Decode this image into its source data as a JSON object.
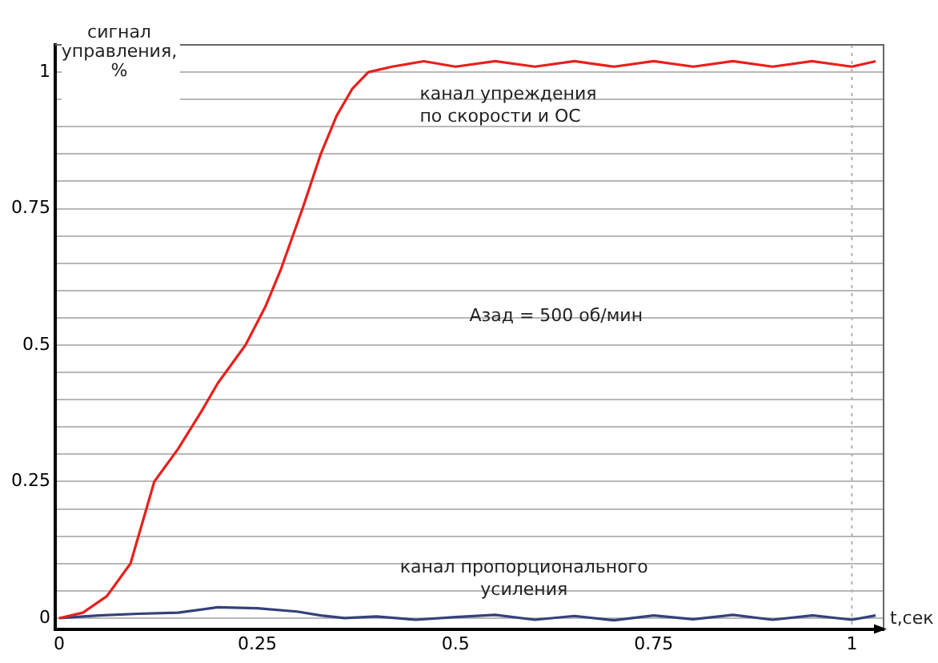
{
  "chart_data": {
    "type": "line",
    "ylabel": "сигнал\nуправления,\n%",
    "xlabel": "t,сек",
    "annotations": [
      "Aзад = 500 об/мин"
    ],
    "xlim": [
      -0.005,
      1.04
    ],
    "ylim": [
      -0.02,
      1.05
    ],
    "xticks": [
      "0",
      0.25,
      0.5,
      0.75,
      1
    ],
    "yticks": [
      0,
      {
        "value": 0.05,
        "label": null
      },
      {
        "value": 0.1,
        "label": null
      },
      {
        "value": 0.15,
        "label": null
      },
      {
        "value": 0.2,
        "label": null
      },
      0.25,
      {
        "value": 0.3,
        "label": null
      },
      {
        "value": 0.35,
        "label": null
      },
      {
        "value": 0.4,
        "label": null
      },
      {
        "value": 0.45,
        "label": null
      },
      0.5,
      {
        "value": 0.55,
        "label": null
      },
      {
        "value": 0.6,
        "label": null
      },
      {
        "value": 0.65,
        "label": null
      },
      {
        "value": 0.7,
        "label": null
      },
      0.75,
      {
        "value": 0.8,
        "label": null
      },
      {
        "value": 0.85,
        "label": null
      },
      {
        "value": 0.9,
        "label": null
      },
      {
        "value": 0.95,
        "label": null
      },
      1
    ],
    "grid": "y",
    "legend": false,
    "marker": "none",
    "line_style": "solid",
    "ref_lines": [
      {
        "axis": "x",
        "value": 1,
        "label": null,
        "color": "#b0b0b0",
        "line_style": "dotted"
      }
    ],
    "series": [
      {
        "name": "канал упреждения\nпо скорости и ОС",
        "color": "#e8201c",
        "x": [
          0,
          0.03,
          0.06,
          0.09,
          0.12,
          0.15,
          0.18,
          0.2,
          0.235,
          0.26,
          0.28,
          0.307,
          0.33,
          0.35,
          0.37,
          0.39,
          0.42,
          0.46,
          0.5,
          0.55,
          0.6,
          0.65,
          0.7,
          0.75,
          0.8,
          0.85,
          0.9,
          0.95,
          1,
          1.03
        ],
        "values": [
          0,
          0.01,
          0.04,
          0.1,
          0.25,
          0.31,
          0.38,
          0.43,
          0.5,
          0.57,
          0.64,
          0.75,
          0.85,
          0.92,
          0.97,
          1,
          1.01,
          1.02,
          1.01,
          1.02,
          1.01,
          1.02,
          1.01,
          1.02,
          1.01,
          1.02,
          1.01,
          1.02,
          1.01,
          1.02
        ]
      },
      {
        "name": "канал пропорционального\nусиления",
        "color": "#34417a",
        "x": [
          0,
          0.05,
          0.1,
          0.15,
          0.2,
          0.25,
          0.3,
          0.33,
          0.36,
          0.4,
          0.45,
          0.5,
          0.55,
          0.6,
          0.65,
          0.7,
          0.75,
          0.8,
          0.85,
          0.9,
          0.95,
          1,
          1.03
        ],
        "values": [
          0,
          0.005,
          0.008,
          0.01,
          0.02,
          0.018,
          0.012,
          0.005,
          0,
          0.003,
          -0.003,
          0.002,
          0.006,
          -0.003,
          0.004,
          -0.004,
          0.005,
          -0.002,
          0.006,
          -0.003,
          0.005,
          -0.003,
          0.005
        ]
      }
    ]
  }
}
